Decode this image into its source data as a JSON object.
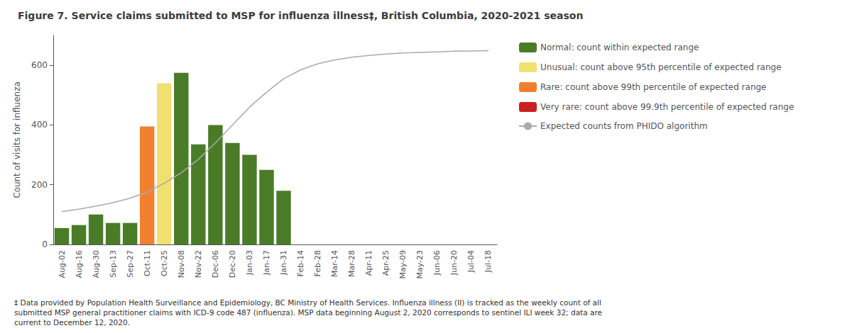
{
  "chart_data": {
    "type": "bar",
    "title": "Figure 7. Service claims submitted to MSP for influenza illness‡, British Columbia, 2020-2021 season",
    "ylabel": "Count of visits for influenza",
    "footnote": "‡ Data provided by Population Health Surveillance and Epidemiology, BC Ministry of Health Services. Influenza illness (II) is tracked as the weekly count of all\nsubmitted MSP general practitioner claims with ICD-9 code 487 (influenza). MSP data beginning August 2, 2020 corresponds to sentinel ILI week 32; data are\ncurrent to December 12, 2020.",
    "categories": [
      "Aug-02",
      "Aug-16",
      "Aug-30",
      "Sep-13",
      "Sep-27",
      "Oct-11",
      "Oct-25",
      "Nov-08",
      "Nov-22",
      "Dec-06",
      "Dec-20",
      "Jan-03",
      "Jan-17",
      "Jan-31",
      "Feb-14",
      "Feb-28",
      "Mar-14",
      "Mar-28",
      "Apr-11",
      "Apr-25",
      "May-09",
      "May-23",
      "Jun-06",
      "Jun-20",
      "Jul-04",
      "Jul-18"
    ],
    "series": [
      {
        "name": "Normal: count within expected range",
        "type": "bar",
        "color": "#4a7c28",
        "values": [
          55,
          65,
          100,
          72,
          72,
          null,
          null,
          575,
          335,
          400,
          340,
          300,
          250,
          180,
          0,
          0,
          0,
          0,
          0,
          0,
          0,
          0,
          0,
          0,
          0,
          0
        ]
      },
      {
        "name": "Unusual: count above 95th percentile of expected range",
        "type": "bar",
        "color": "#f0e070",
        "values": [
          null,
          null,
          null,
          null,
          null,
          null,
          540,
          null,
          null,
          null,
          null,
          null,
          null,
          null,
          null,
          null,
          null,
          null,
          null,
          null,
          null,
          null,
          null,
          null,
          null,
          null
        ]
      },
      {
        "name": "Rare: count above 99th percentile of expected range",
        "type": "bar",
        "color": "#f08030",
        "values": [
          null,
          null,
          null,
          null,
          null,
          395,
          null,
          null,
          null,
          null,
          null,
          null,
          null,
          null,
          null,
          null,
          null,
          null,
          null,
          null,
          null,
          null,
          null,
          null,
          null,
          null
        ]
      },
      {
        "name": "Very rare: count above 99.9th percentile of expected range",
        "type": "bar",
        "color": "#cc2020",
        "values": [
          null,
          null,
          null,
          null,
          null,
          null,
          null,
          null,
          null,
          null,
          null,
          null,
          null,
          null,
          null,
          null,
          null,
          null,
          null,
          null,
          null,
          null,
          null,
          null,
          null,
          null
        ]
      },
      {
        "name": "Expected counts from PHIDO algorithm",
        "type": "line",
        "color": "#aaaaaa",
        "values": [
          110,
          118,
          128,
          140,
          155,
          175,
          205,
          240,
          285,
          340,
          400,
          460,
          510,
          555,
          585,
          605,
          618,
          627,
          633,
          638,
          641,
          643,
          645,
          647,
          648,
          649
        ]
      }
    ],
    "ylim": [
      0,
      700
    ],
    "yticks": [
      0,
      200,
      400,
      600
    ],
    "grid": false,
    "legend": "right"
  }
}
